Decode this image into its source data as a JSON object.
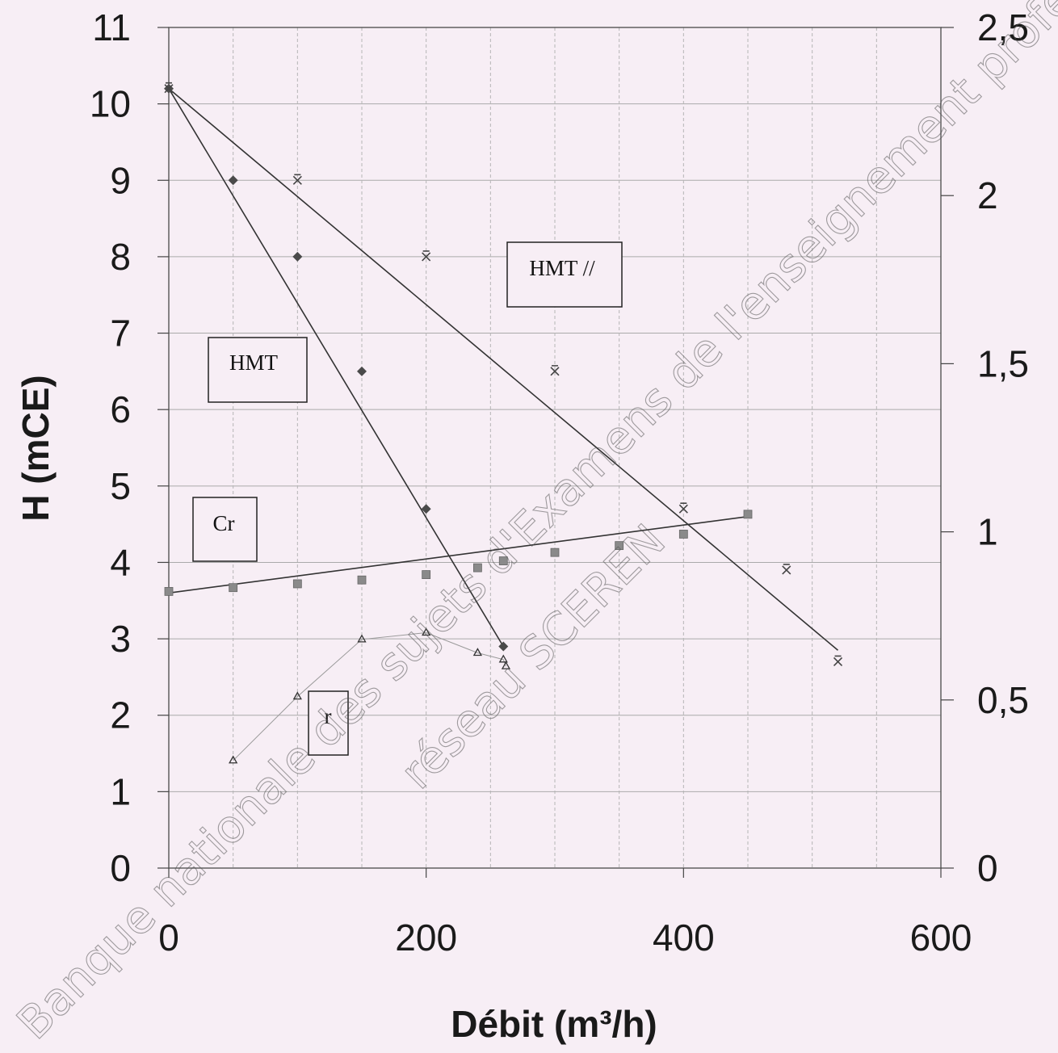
{
  "chart_data": {
    "type": "line",
    "xlabel": "Débit (m³/h)",
    "ylabel": "H (mCE)",
    "xlim": [
      0,
      600
    ],
    "ylim": [
      0,
      11
    ],
    "y2lim": [
      0,
      2.5
    ],
    "xticks": [
      "0",
      "200",
      "400",
      "600"
    ],
    "yticks": [
      "0",
      "1",
      "2",
      "3",
      "4",
      "5",
      "6",
      "7",
      "8",
      "9",
      "10",
      "11"
    ],
    "y2ticks": [
      "0",
      "0,5",
      "1",
      "1,5",
      "2",
      "2,5"
    ],
    "grid": true,
    "series": [
      {
        "name": "HMT",
        "axis": "left",
        "marker": "diamond",
        "points": [
          [
            0,
            10.2
          ],
          [
            50,
            9.0
          ],
          [
            100,
            8.0
          ],
          [
            150,
            6.5
          ],
          [
            200,
            4.7
          ],
          [
            260,
            2.9
          ]
        ]
      },
      {
        "name": "HMT //",
        "axis": "left",
        "marker": "x",
        "points": [
          [
            0,
            10.2
          ],
          [
            100,
            9.0
          ],
          [
            200,
            8.0
          ],
          [
            300,
            6.5
          ],
          [
            400,
            4.7
          ],
          [
            480,
            3.9
          ],
          [
            520,
            2.7
          ]
        ]
      },
      {
        "name": "Cr",
        "axis": "left",
        "marker": "square",
        "points": [
          [
            0,
            3.62
          ],
          [
            50,
            3.67
          ],
          [
            100,
            3.72
          ],
          [
            150,
            3.77
          ],
          [
            200,
            3.84
          ],
          [
            240,
            3.93
          ],
          [
            260,
            4.02
          ],
          [
            300,
            4.13
          ],
          [
            350,
            4.22
          ],
          [
            400,
            4.37
          ],
          [
            450,
            4.63
          ]
        ]
      },
      {
        "name": "r",
        "axis": "right",
        "marker": "triangle",
        "points": [
          [
            50,
            0.32
          ],
          [
            100,
            0.51
          ],
          [
            150,
            0.68
          ],
          [
            200,
            0.7
          ],
          [
            240,
            0.64
          ],
          [
            260,
            0.62
          ],
          [
            262,
            0.6
          ]
        ]
      }
    ],
    "fit_lines": [
      {
        "series": "HMT",
        "points": [
          [
            0,
            10.2
          ],
          [
            260,
            2.9
          ]
        ]
      },
      {
        "series": "HMT //",
        "points": [
          [
            0,
            10.2
          ],
          [
            520,
            2.85
          ]
        ]
      },
      {
        "series": "Cr",
        "points": [
          [
            0,
            3.6
          ],
          [
            450,
            4.6
          ]
        ]
      }
    ],
    "annotations": [
      {
        "text": "HMT //",
        "series": "HMT //"
      },
      {
        "text": "HMT",
        "series": "HMT"
      },
      {
        "text": "Cr",
        "series": "Cr"
      },
      {
        "text": "r",
        "series": "r"
      }
    ],
    "watermark": [
      "Banque nationale des sujets d'Examens de l'enseignement professionnel",
      "réseau SCEREN"
    ]
  }
}
